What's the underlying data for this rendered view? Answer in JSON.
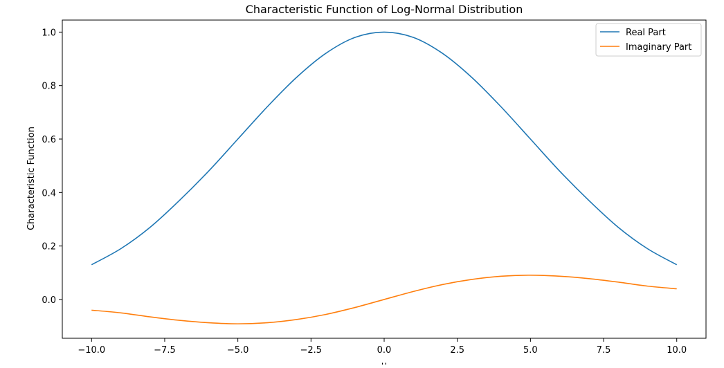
{
  "chart_data": {
    "type": "line",
    "title": "Characteristic Function of Log-Normal Distribution",
    "xlabel": "u",
    "ylabel": "Characteristic Function",
    "xlim": [
      -11.0,
      11.0
    ],
    "ylim": [
      -0.145,
      1.045
    ],
    "x_ticks": [
      -10.0,
      -7.5,
      -5.0,
      -2.5,
      0.0,
      2.5,
      5.0,
      7.5,
      10.0
    ],
    "x_tick_labels": [
      "−10.0",
      "−7.5",
      "−5.0",
      "−2.5",
      "0.0",
      "2.5",
      "5.0",
      "7.5",
      "10.0"
    ],
    "y_ticks": [
      0.0,
      0.2,
      0.4,
      0.6,
      0.8,
      1.0
    ],
    "y_tick_labels": [
      "0.0",
      "0.2",
      "0.4",
      "0.6",
      "0.8",
      "1.0"
    ],
    "grid": false,
    "legend_position": "top-right",
    "series": [
      {
        "name": "Real Part",
        "color": "#1f77b4",
        "x": [
          -10,
          -9,
          -8,
          -7,
          -6,
          -5,
          -4,
          -3,
          -2,
          -1,
          0,
          1,
          2,
          3,
          4,
          5,
          6,
          7,
          8,
          9,
          10
        ],
        "values": [
          0.13,
          0.19,
          0.27,
          0.37,
          0.48,
          0.6,
          0.72,
          0.83,
          0.92,
          0.98,
          1.0,
          0.98,
          0.92,
          0.83,
          0.72,
          0.6,
          0.48,
          0.37,
          0.27,
          0.19,
          0.13
        ]
      },
      {
        "name": "Imaginary Part",
        "color": "#ff7f0e",
        "x": [
          -10,
          -9,
          -8,
          -7,
          -6,
          -5,
          -4,
          -3,
          -2,
          -1,
          0,
          1,
          2,
          3,
          4,
          5,
          6,
          7,
          8,
          9,
          10
        ],
        "values": [
          -0.04,
          -0.05,
          -0.065,
          -0.078,
          -0.087,
          -0.091,
          -0.087,
          -0.075,
          -0.056,
          -0.03,
          0.0,
          0.03,
          0.056,
          0.075,
          0.087,
          0.091,
          0.087,
          0.078,
          0.065,
          0.05,
          0.04
        ]
      }
    ]
  }
}
